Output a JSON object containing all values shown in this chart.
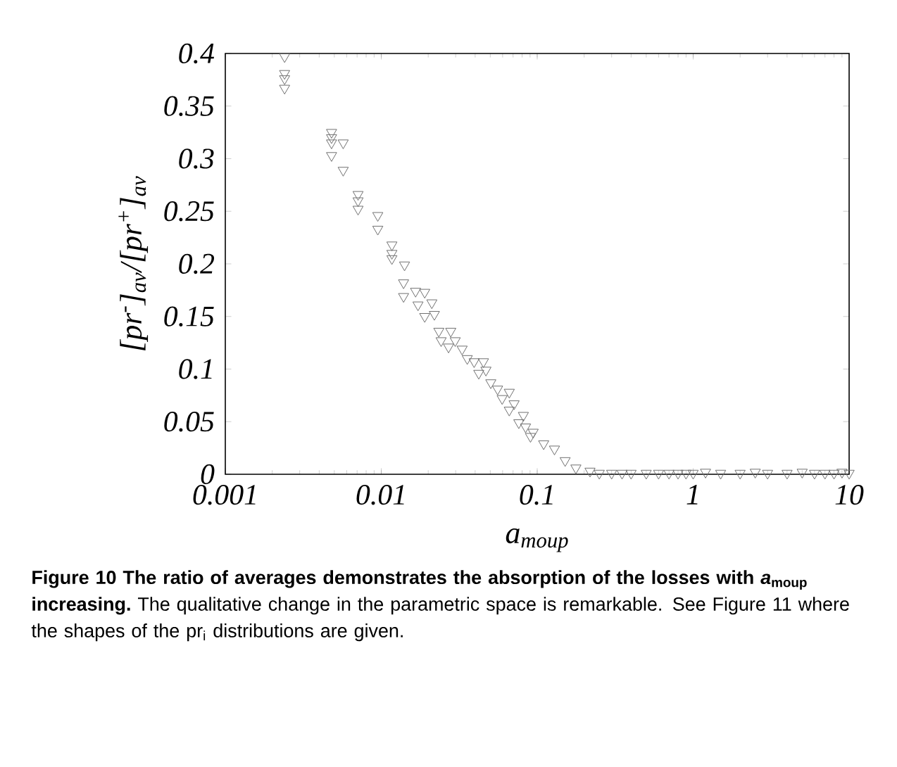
{
  "chart_data": {
    "type": "scatter",
    "xlabel": "a$_{moup}$",
    "ylabel": "[pr$^{-}$]$_{av}$/[pr$^{+}$]$_{av}$",
    "log": "x",
    "marker": "triangle",
    "xlim": [
      0.001,
      10
    ],
    "ylim": [
      0,
      0.4
    ],
    "xticks": [
      0.001,
      0.01,
      0.1,
      1,
      10
    ],
    "yticks": [
      0,
      0.05,
      0.1,
      0.15,
      0.2,
      0.25,
      0.3,
      0.35,
      0.4
    ],
    "series": [
      {
        "color": "#707070",
        "x": [
          0.0024,
          0.0024,
          0.0024,
          0.0024,
          0.0048,
          0.0048,
          0.0048,
          0.0057,
          0.0048,
          0.0057,
          0.0071,
          0.0071,
          0.0071,
          0.0095,
          0.0095,
          0.0117,
          0.0117,
          0.0117,
          0.0141,
          0.0139,
          0.0139,
          0.0166,
          0.019,
          0.0172,
          0.0211,
          0.019,
          0.0219,
          0.0234,
          0.0279,
          0.0242,
          0.0298,
          0.027,
          0.033,
          0.0356,
          0.0394,
          0.0452,
          0.0422,
          0.0469,
          0.0504,
          0.0557,
          0.0662,
          0.0596,
          0.0711,
          0.0662,
          0.0815,
          0.0762,
          0.0842,
          0.0905,
          0.0942,
          0.11,
          0.129,
          0.151,
          0.177,
          0.218,
          0.25,
          0.3,
          0.35,
          0.4,
          0.5,
          0.6,
          0.7,
          0.8,
          0.9,
          1,
          1.2,
          1.5,
          2,
          2.5,
          3,
          4,
          5,
          6,
          7,
          8,
          9,
          10
        ],
        "values": [
          0.397,
          0.381,
          0.376,
          0.367,
          0.325,
          0.32,
          0.315,
          0.315,
          0.303,
          0.289,
          0.266,
          0.26,
          0.252,
          0.246,
          0.233,
          0.218,
          0.21,
          0.205,
          0.199,
          0.182,
          0.169,
          0.174,
          0.173,
          0.161,
          0.163,
          0.15,
          0.152,
          0.136,
          0.136,
          0.127,
          0.127,
          0.121,
          0.119,
          0.11,
          0.107,
          0.107,
          0.096,
          0.099,
          0.087,
          0.081,
          0.078,
          0.072,
          0.067,
          0.061,
          0.056,
          0.049,
          0.045,
          0.036,
          0.04,
          0.029,
          0.024,
          0.013,
          0.006,
          0.003,
          0.001,
          0.001,
          0.001,
          0.001,
          0.001,
          0.001,
          0.001,
          0.001,
          0.001,
          0.001,
          0.002,
          0.001,
          0.001,
          0.002,
          0.001,
          0.001,
          0.002,
          0.001,
          0.001,
          0.001,
          0.002,
          0.001
        ]
      }
    ],
    "annotations": [
      "**Figure 10 The ratio of averages demonstrates the absorption of the losses with *a*$_{moup}$ increasing.**",
      "The qualitative change in the parametric space is remarkable. See Figure 11 where the shapes of the pr$_{i}$ distributions are given."
    ]
  }
}
